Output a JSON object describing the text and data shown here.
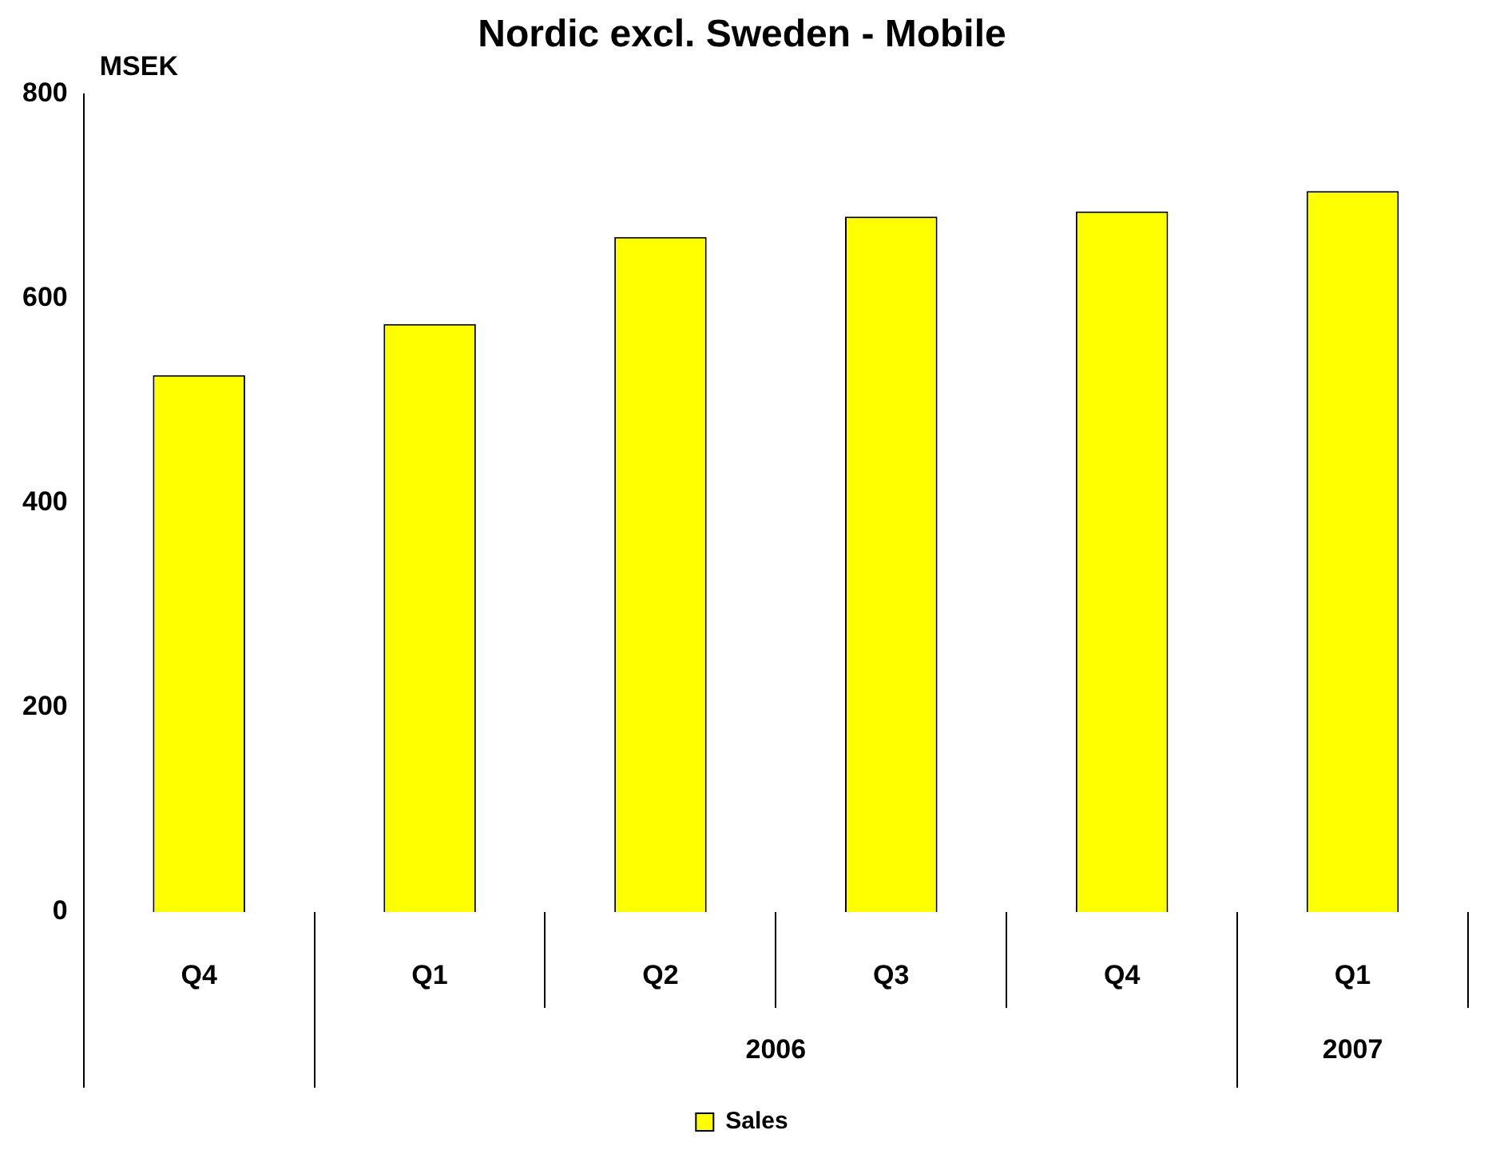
{
  "chart_data": {
    "type": "bar",
    "title": "Nordic excl. Sweden - Mobile",
    "ylabel": "MSEK",
    "categories": [
      "Q4",
      "Q1",
      "Q2",
      "Q3",
      "Q4",
      "Q1"
    ],
    "series": [
      {
        "name": "Sales",
        "color": "#ffff00",
        "values": [
          525,
          575,
          660,
          680,
          685,
          705
        ]
      }
    ],
    "ylim": [
      0,
      800
    ],
    "yticks": [
      0,
      200,
      400,
      600,
      800
    ],
    "grid": false,
    "legend": "bottom",
    "annotations": [
      "2006",
      "2007"
    ]
  }
}
